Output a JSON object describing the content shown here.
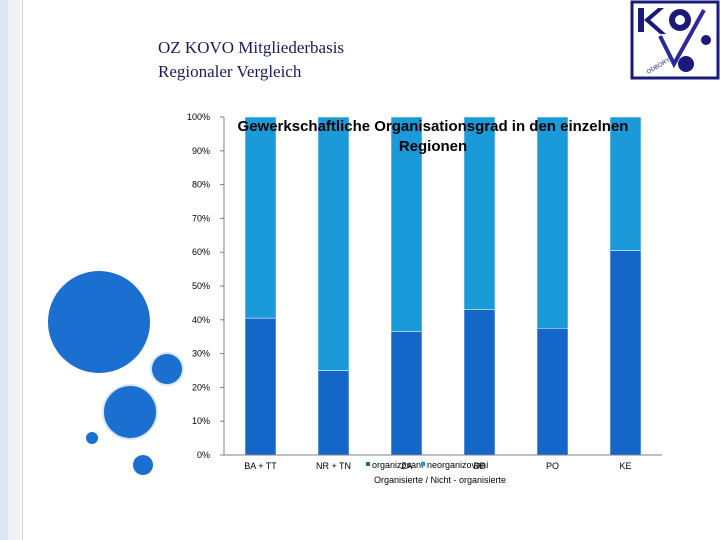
{
  "slide": {
    "title_line1": "OZ KOVO Mitgliederbasis",
    "title_line2": "Regionaler Vergleich"
  },
  "colors": {
    "organized": "#1467c8",
    "unorganized": "#1a9ad8",
    "title": "#1a1a5a"
  },
  "chart_data": {
    "type": "bar",
    "stacked": true,
    "title": "Gewerkschaftliche Organisationsgrad in den einzelnen Regionen",
    "categories": [
      "BA + TT",
      "NR + TN",
      "ZA",
      "BB",
      "PO",
      "KE"
    ],
    "series": [
      {
        "name": "organizovaní",
        "values": [
          40.5,
          25,
          36.5,
          43,
          37.5,
          60.5
        ]
      },
      {
        "name": "neorganizovaní",
        "values": [
          59.5,
          75,
          63.5,
          57,
          62.5,
          39.5
        ]
      }
    ],
    "ylim": [
      0,
      100
    ],
    "yticks": [
      "0%",
      "10%",
      "20%",
      "30%",
      "40%",
      "50%",
      "60%",
      "70%",
      "80%",
      "90%",
      "100%"
    ],
    "xlabel": "Organisierte / Nicht - organisierte",
    "legend": "bottom",
    "grid": false
  }
}
